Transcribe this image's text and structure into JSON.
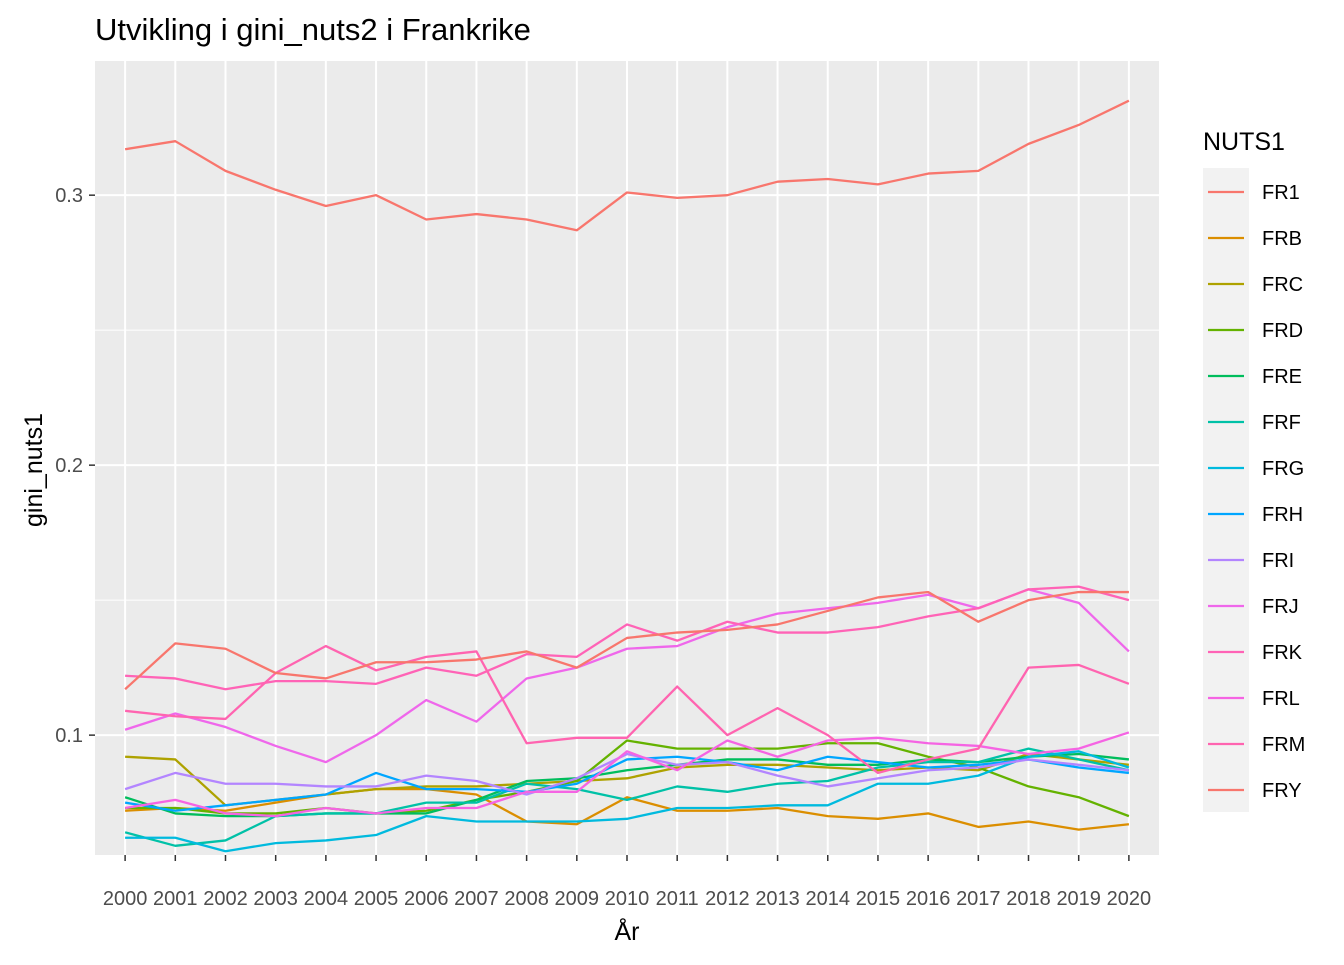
{
  "chart_data": {
    "type": "line",
    "title": "Utvikling i gini_nuts2 i Frankrike",
    "xlabel": "År",
    "ylabel": "gini_nuts1",
    "x": [
      2000,
      2001,
      2002,
      2003,
      2004,
      2005,
      2006,
      2007,
      2008,
      2009,
      2010,
      2011,
      2012,
      2013,
      2014,
      2015,
      2016,
      2017,
      2018,
      2019,
      2020
    ],
    "xlim": [
      1999.4,
      2020.6
    ],
    "ylim": [
      0.0556,
      0.3497
    ],
    "yticks": [
      0.1,
      0.2,
      0.3
    ],
    "ytick_labels": [
      "0.1",
      "0.2",
      "0.3"
    ],
    "grid": true,
    "legend": {
      "title": "NUTS1",
      "position": "right"
    },
    "series": [
      {
        "name": "FR1",
        "color": "#F8766D",
        "values": [
          0.317,
          0.32,
          0.309,
          0.302,
          0.296,
          0.3,
          0.291,
          0.293,
          0.291,
          0.287,
          0.301,
          0.299,
          0.3,
          0.305,
          0.306,
          0.304,
          0.308,
          0.309,
          0.319,
          0.326,
          0.335
        ]
      },
      {
        "name": "FRB",
        "color": "#DB8E00",
        "values": [
          0.072,
          0.073,
          0.072,
          0.075,
          0.078,
          0.08,
          0.08,
          0.078,
          0.068,
          0.067,
          0.077,
          0.072,
          0.072,
          0.073,
          0.07,
          0.069,
          0.071,
          0.066,
          0.068,
          0.065,
          0.067
        ]
      },
      {
        "name": "FRC",
        "color": "#AEA200",
        "values": [
          0.092,
          0.091,
          0.074,
          0.076,
          0.078,
          0.08,
          0.081,
          0.081,
          0.082,
          0.083,
          0.084,
          0.088,
          0.089,
          0.089,
          0.088,
          0.087,
          0.088,
          0.087,
          0.093,
          0.091,
          0.089
        ]
      },
      {
        "name": "FRD",
        "color": "#64B200",
        "values": [
          0.073,
          0.073,
          0.071,
          0.071,
          0.073,
          0.071,
          0.072,
          0.076,
          0.079,
          0.083,
          0.098,
          0.095,
          0.095,
          0.095,
          0.097,
          0.097,
          0.092,
          0.088,
          0.081,
          0.077,
          0.07
        ]
      },
      {
        "name": "FRE",
        "color": "#00BD5C",
        "values": [
          0.077,
          0.071,
          0.07,
          0.07,
          0.071,
          0.071,
          0.071,
          0.076,
          0.083,
          0.084,
          0.087,
          0.089,
          0.091,
          0.091,
          0.089,
          0.089,
          0.091,
          0.09,
          0.092,
          0.093,
          0.091
        ]
      },
      {
        "name": "FRF",
        "color": "#00C1A7",
        "values": [
          0.064,
          0.059,
          0.061,
          0.07,
          0.071,
          0.071,
          0.075,
          0.075,
          0.082,
          0.08,
          0.076,
          0.081,
          0.079,
          0.082,
          0.083,
          0.088,
          0.09,
          0.09,
          0.095,
          0.091,
          0.087
        ]
      },
      {
        "name": "FRG",
        "color": "#00BADE",
        "values": [
          0.062,
          0.062,
          0.057,
          0.06,
          0.061,
          0.063,
          0.07,
          0.068,
          0.068,
          0.068,
          0.069,
          0.073,
          0.073,
          0.074,
          0.074,
          0.082,
          0.082,
          0.085,
          0.092,
          0.094,
          0.088
        ]
      },
      {
        "name": "FRH",
        "color": "#00A6FF",
        "values": [
          0.075,
          0.072,
          0.074,
          0.076,
          0.078,
          0.086,
          0.08,
          0.08,
          0.079,
          0.082,
          0.091,
          0.092,
          0.09,
          0.087,
          0.092,
          0.09,
          0.088,
          0.089,
          0.091,
          0.088,
          0.086
        ]
      },
      {
        "name": "FRI",
        "color": "#B385FF",
        "values": [
          0.08,
          0.086,
          0.082,
          0.082,
          0.081,
          0.081,
          0.085,
          0.083,
          0.078,
          0.084,
          0.093,
          0.089,
          0.09,
          0.085,
          0.081,
          0.084,
          0.087,
          0.088,
          0.091,
          0.089,
          0.087
        ]
      },
      {
        "name": "FRJ",
        "color": "#EF67EB",
        "values": [
          0.102,
          0.108,
          0.103,
          0.096,
          0.09,
          0.1,
          0.113,
          0.105,
          0.121,
          0.125,
          0.132,
          0.133,
          0.14,
          0.145,
          0.147,
          0.149,
          0.152,
          0.147,
          0.154,
          0.149,
          0.131
        ]
      },
      {
        "name": "FRK",
        "color": "#FF63B6",
        "values": [
          0.122,
          0.121,
          0.117,
          0.12,
          0.12,
          0.119,
          0.125,
          0.122,
          0.13,
          0.129,
          0.141,
          0.135,
          0.142,
          0.138,
          0.138,
          0.14,
          0.144,
          0.147,
          0.154,
          0.155,
          0.15
        ]
      },
      {
        "name": "FRL",
        "color": "#F564E3",
        "values": [
          0.073,
          0.076,
          0.071,
          0.07,
          0.073,
          0.071,
          0.073,
          0.073,
          0.079,
          0.079,
          0.094,
          0.087,
          0.098,
          0.092,
          0.098,
          0.099,
          0.097,
          0.096,
          0.093,
          0.095,
          0.101
        ]
      },
      {
        "name": "FRM",
        "color": "#FF64B0",
        "values": [
          0.109,
          0.107,
          0.106,
          0.123,
          0.133,
          0.124,
          0.129,
          0.131,
          0.097,
          0.099,
          0.099,
          0.118,
          0.1,
          0.11,
          0.1,
          0.086,
          0.091,
          0.095,
          0.125,
          0.126,
          0.119
        ]
      },
      {
        "name": "FRY",
        "color": "#F8766D",
        "values": [
          0.117,
          0.134,
          0.132,
          0.123,
          0.121,
          0.127,
          0.127,
          0.128,
          0.131,
          0.125,
          0.136,
          0.138,
          0.139,
          0.141,
          0.146,
          0.151,
          0.153,
          0.142,
          0.15,
          0.153,
          0.153
        ]
      }
    ]
  }
}
